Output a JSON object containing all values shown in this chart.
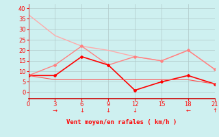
{
  "x": [
    0,
    3,
    6,
    9,
    12,
    15,
    18,
    21
  ],
  "line1": [
    37,
    27,
    22,
    20,
    17,
    15,
    20,
    11
  ],
  "line2": [
    8,
    13,
    22,
    13,
    17,
    15,
    20,
    11
  ],
  "line3": [
    8,
    8,
    17,
    13,
    1,
    5,
    8,
    4
  ],
  "line4": [
    8,
    6,
    6,
    6,
    6,
    6,
    6,
    4
  ],
  "arrows": [
    3,
    6,
    9,
    12,
    18,
    21
  ],
  "arrow_symbols": [
    "→",
    "↓",
    "↓",
    "↓",
    "←",
    "↑"
  ],
  "bg_color": "#cef0f0",
  "grid_color": "#b0c8c8",
  "line1_color": "#ffaaaa",
  "line2_color": "#ff8080",
  "line3_color": "#ff0000",
  "line4_color": "#ff5555",
  "xlabel": "Vent moyen/en rafales ( km/h )",
  "xlabel_color": "#ff0000",
  "tick_color": "#ff0000",
  "spine_color": "#cc0000",
  "ylim": [
    -3,
    42
  ],
  "xlim": [
    0,
    21
  ],
  "yticks": [
    0,
    5,
    10,
    15,
    20,
    25,
    30,
    35,
    40
  ],
  "xticks": [
    0,
    3,
    6,
    9,
    12,
    15,
    18,
    21
  ]
}
